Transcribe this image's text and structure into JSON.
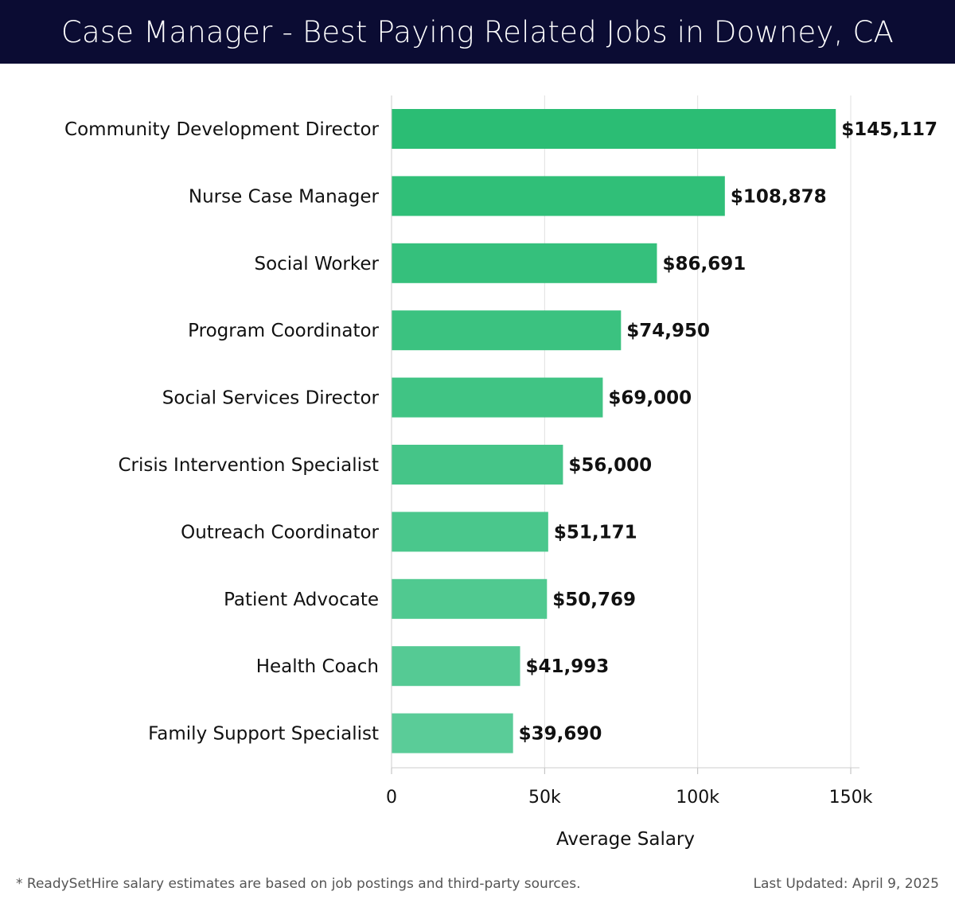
{
  "header": {
    "title": "Case Manager - Best Paying Related Jobs in Downey, CA"
  },
  "chart_data": {
    "type": "bar",
    "orientation": "horizontal",
    "title": "Case Manager - Best Paying Related Jobs in Downey, CA",
    "xlabel": "Average Salary",
    "ylabel": "",
    "xlim": [
      0,
      150000
    ],
    "x_ticks": [
      0,
      50000,
      100000,
      150000
    ],
    "x_tick_labels": [
      "0",
      "50k",
      "100k",
      "150k"
    ],
    "grid": true,
    "categories": [
      "Community Development Director",
      "Nurse Case Manager",
      "Social Worker",
      "Program Coordinator",
      "Social Services Director",
      "Crisis Intervention Specialist",
      "Outreach Coordinator",
      "Patient Advocate",
      "Health Coach",
      "Family Support Specialist"
    ],
    "values": [
      145117,
      108878,
      86691,
      74950,
      69000,
      56000,
      51171,
      50769,
      41993,
      39690
    ],
    "value_labels": [
      "$145,117",
      "$108,878",
      "$86,691",
      "$74,950",
      "$69,000",
      "$56,000",
      "$51,171",
      "$50,769",
      "$41,993",
      "$39,690"
    ],
    "colors": {
      "bar_top": "#2bbd74",
      "bar_bottom": "#5acc98",
      "grid": "#e0e0e0",
      "axis": "#cccccc",
      "text": "#111111"
    }
  },
  "footer": {
    "note": "* ReadySetHire salary estimates are based on job postings and third-party sources.",
    "updated": "Last Updated: April 9, 2025"
  }
}
